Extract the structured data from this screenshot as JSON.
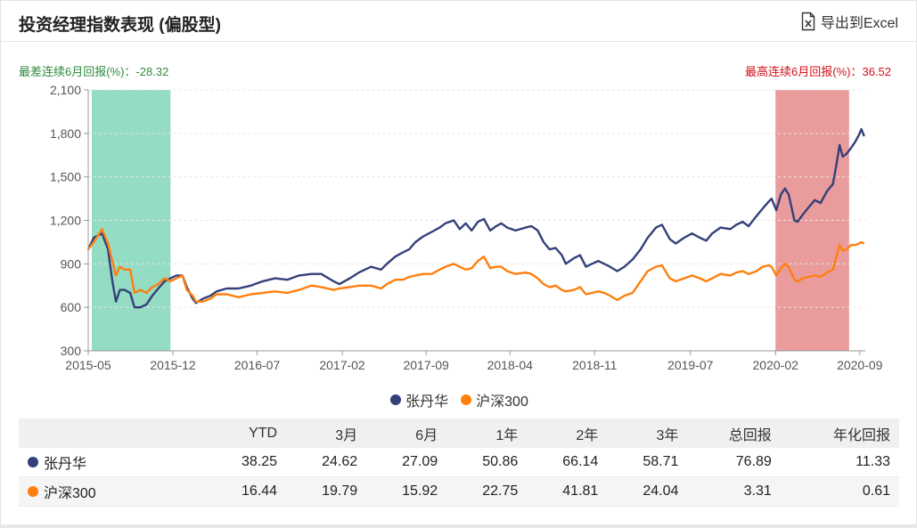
{
  "header": {
    "title": "投资经理指数表现 (偏股型)",
    "export_label": "导出到Excel"
  },
  "summary": {
    "worst_label": "最差连续6月回报(%)：-28.32",
    "best_label": "最高连续6月回报(%)：36.52"
  },
  "colors": {
    "manager": "#34407a",
    "index": "#ff7f0e",
    "worst_band": "#94dcc3",
    "best_band": "#ea9c9c"
  },
  "chart_data": {
    "type": "line",
    "x_range": [
      "2015-05-01",
      "2020-09-15"
    ],
    "x_ticks": [
      "2015-05",
      "2015-12",
      "2016-07",
      "2017-02",
      "2017-09",
      "2018-04",
      "2018-11",
      "2019-07",
      "2020-02",
      "2020-09"
    ],
    "ylim": [
      300,
      2100
    ],
    "y_ticks": [
      "300",
      "600",
      "900",
      "1,200",
      "1,500",
      "1,800",
      "2,100"
    ],
    "grid": true,
    "legend_position": "bottom",
    "bands": [
      {
        "name": "worst",
        "start": "2015-05-10",
        "end": "2015-11-25"
      },
      {
        "name": "best",
        "start": "2020-02-01",
        "end": "2020-08-05"
      }
    ],
    "series": [
      {
        "name": "张丹华",
        "points": [
          [
            "2015-05-01",
            1000
          ],
          [
            "2015-05-15",
            1080
          ],
          [
            "2015-06-05",
            1110
          ],
          [
            "2015-06-20",
            1000
          ],
          [
            "2015-07-01",
            780
          ],
          [
            "2015-07-10",
            640
          ],
          [
            "2015-07-20",
            720
          ],
          [
            "2015-08-01",
            720
          ],
          [
            "2015-08-15",
            700
          ],
          [
            "2015-08-26",
            600
          ],
          [
            "2015-09-10",
            600
          ],
          [
            "2015-09-25",
            620
          ],
          [
            "2015-10-10",
            680
          ],
          [
            "2015-10-25",
            730
          ],
          [
            "2015-11-10",
            780
          ],
          [
            "2015-11-25",
            800
          ],
          [
            "2015-12-10",
            820
          ],
          [
            "2015-12-25",
            820
          ],
          [
            "2016-01-05",
            740
          ],
          [
            "2016-01-20",
            660
          ],
          [
            "2016-01-28",
            630
          ],
          [
            "2016-02-15",
            660
          ],
          [
            "2016-03-05",
            680
          ],
          [
            "2016-03-20",
            710
          ],
          [
            "2016-04-15",
            730
          ],
          [
            "2016-05-15",
            730
          ],
          [
            "2016-06-15",
            750
          ],
          [
            "2016-07-15",
            780
          ],
          [
            "2016-08-15",
            800
          ],
          [
            "2016-09-15",
            790
          ],
          [
            "2016-10-15",
            820
          ],
          [
            "2016-11-15",
            830
          ],
          [
            "2016-12-10",
            830
          ],
          [
            "2017-01-10",
            780
          ],
          [
            "2017-01-25",
            760
          ],
          [
            "2017-02-20",
            800
          ],
          [
            "2017-03-15",
            840
          ],
          [
            "2017-04-15",
            880
          ],
          [
            "2017-05-10",
            860
          ],
          [
            "2017-05-25",
            900
          ],
          [
            "2017-06-15",
            950
          ],
          [
            "2017-07-05",
            980
          ],
          [
            "2017-07-20",
            1000
          ],
          [
            "2017-08-05",
            1050
          ],
          [
            "2017-08-25",
            1090
          ],
          [
            "2017-09-15",
            1120
          ],
          [
            "2017-10-05",
            1150
          ],
          [
            "2017-10-20",
            1180
          ],
          [
            "2017-11-10",
            1200
          ],
          [
            "2017-11-25",
            1140
          ],
          [
            "2017-12-10",
            1180
          ],
          [
            "2017-12-25",
            1130
          ],
          [
            "2018-01-10",
            1190
          ],
          [
            "2018-01-25",
            1210
          ],
          [
            "2018-02-10",
            1130
          ],
          [
            "2018-02-25",
            1160
          ],
          [
            "2018-03-10",
            1180
          ],
          [
            "2018-03-25",
            1150
          ],
          [
            "2018-04-15",
            1130
          ],
          [
            "2018-05-10",
            1150
          ],
          [
            "2018-05-25",
            1160
          ],
          [
            "2018-06-10",
            1130
          ],
          [
            "2018-06-25",
            1050
          ],
          [
            "2018-07-10",
            1000
          ],
          [
            "2018-07-25",
            1010
          ],
          [
            "2018-08-10",
            960
          ],
          [
            "2018-08-20",
            900
          ],
          [
            "2018-09-10",
            940
          ],
          [
            "2018-09-25",
            960
          ],
          [
            "2018-10-10",
            880
          ],
          [
            "2018-10-25",
            900
          ],
          [
            "2018-11-10",
            920
          ],
          [
            "2018-11-25",
            900
          ],
          [
            "2018-12-10",
            880
          ],
          [
            "2018-12-28",
            850
          ],
          [
            "2019-01-15",
            880
          ],
          [
            "2019-02-05",
            930
          ],
          [
            "2019-02-25",
            1000
          ],
          [
            "2019-03-15",
            1080
          ],
          [
            "2019-04-05",
            1150
          ],
          [
            "2019-04-20",
            1170
          ],
          [
            "2019-05-10",
            1070
          ],
          [
            "2019-05-25",
            1040
          ],
          [
            "2019-06-15",
            1080
          ],
          [
            "2019-07-05",
            1110
          ],
          [
            "2019-07-25",
            1080
          ],
          [
            "2019-08-10",
            1060
          ],
          [
            "2019-08-25",
            1110
          ],
          [
            "2019-09-15",
            1150
          ],
          [
            "2019-10-10",
            1140
          ],
          [
            "2019-10-25",
            1170
          ],
          [
            "2019-11-10",
            1190
          ],
          [
            "2019-11-25",
            1160
          ],
          [
            "2019-12-15",
            1230
          ],
          [
            "2019-12-30",
            1280
          ],
          [
            "2020-01-15",
            1330
          ],
          [
            "2020-01-22",
            1350
          ],
          [
            "2020-02-03",
            1270
          ],
          [
            "2020-02-15",
            1380
          ],
          [
            "2020-02-25",
            1420
          ],
          [
            "2020-03-05",
            1380
          ],
          [
            "2020-03-20",
            1200
          ],
          [
            "2020-03-28",
            1190
          ],
          [
            "2020-04-10",
            1240
          ],
          [
            "2020-04-25",
            1290
          ],
          [
            "2020-05-10",
            1340
          ],
          [
            "2020-05-25",
            1320
          ],
          [
            "2020-06-10",
            1400
          ],
          [
            "2020-06-25",
            1450
          ],
          [
            "2020-07-05",
            1600
          ],
          [
            "2020-07-12",
            1720
          ],
          [
            "2020-07-20",
            1640
          ],
          [
            "2020-07-30",
            1660
          ],
          [
            "2020-08-10",
            1700
          ],
          [
            "2020-08-20",
            1740
          ],
          [
            "2020-08-30",
            1790
          ],
          [
            "2020-09-05",
            1830
          ],
          [
            "2020-09-12",
            1780
          ]
        ]
      },
      {
        "name": "沪深300",
        "points": [
          [
            "2015-05-01",
            1000
          ],
          [
            "2015-05-15",
            1050
          ],
          [
            "2015-06-05",
            1140
          ],
          [
            "2015-06-20",
            1040
          ],
          [
            "2015-07-01",
            920
          ],
          [
            "2015-07-10",
            820
          ],
          [
            "2015-07-20",
            880
          ],
          [
            "2015-08-01",
            860
          ],
          [
            "2015-08-15",
            860
          ],
          [
            "2015-08-26",
            700
          ],
          [
            "2015-09-10",
            720
          ],
          [
            "2015-09-25",
            700
          ],
          [
            "2015-10-10",
            740
          ],
          [
            "2015-10-25",
            760
          ],
          [
            "2015-11-10",
            800
          ],
          [
            "2015-11-25",
            780
          ],
          [
            "2015-12-10",
            800
          ],
          [
            "2015-12-25",
            820
          ],
          [
            "2016-01-05",
            720
          ],
          [
            "2016-01-20",
            680
          ],
          [
            "2016-01-28",
            640
          ],
          [
            "2016-02-15",
            640
          ],
          [
            "2016-03-05",
            660
          ],
          [
            "2016-03-20",
            690
          ],
          [
            "2016-04-15",
            690
          ],
          [
            "2016-05-15",
            670
          ],
          [
            "2016-06-15",
            690
          ],
          [
            "2016-07-15",
            700
          ],
          [
            "2016-08-15",
            710
          ],
          [
            "2016-09-15",
            700
          ],
          [
            "2016-10-15",
            720
          ],
          [
            "2016-11-15",
            750
          ],
          [
            "2016-12-10",
            740
          ],
          [
            "2017-01-10",
            720
          ],
          [
            "2017-01-25",
            730
          ],
          [
            "2017-02-20",
            740
          ],
          [
            "2017-03-15",
            750
          ],
          [
            "2017-04-15",
            750
          ],
          [
            "2017-05-10",
            730
          ],
          [
            "2017-05-25",
            760
          ],
          [
            "2017-06-15",
            790
          ],
          [
            "2017-07-05",
            790
          ],
          [
            "2017-07-20",
            810
          ],
          [
            "2017-08-05",
            820
          ],
          [
            "2017-08-25",
            830
          ],
          [
            "2017-09-15",
            830
          ],
          [
            "2017-10-05",
            860
          ],
          [
            "2017-10-20",
            880
          ],
          [
            "2017-11-10",
            900
          ],
          [
            "2017-11-25",
            880
          ],
          [
            "2017-12-10",
            860
          ],
          [
            "2017-12-25",
            870
          ],
          [
            "2018-01-10",
            920
          ],
          [
            "2018-01-25",
            950
          ],
          [
            "2018-02-10",
            870
          ],
          [
            "2018-02-25",
            880
          ],
          [
            "2018-03-10",
            880
          ],
          [
            "2018-03-25",
            850
          ],
          [
            "2018-04-15",
            830
          ],
          [
            "2018-05-10",
            840
          ],
          [
            "2018-05-25",
            830
          ],
          [
            "2018-06-10",
            800
          ],
          [
            "2018-06-25",
            760
          ],
          [
            "2018-07-10",
            740
          ],
          [
            "2018-07-25",
            750
          ],
          [
            "2018-08-10",
            720
          ],
          [
            "2018-08-20",
            710
          ],
          [
            "2018-09-10",
            720
          ],
          [
            "2018-09-25",
            740
          ],
          [
            "2018-10-10",
            690
          ],
          [
            "2018-10-25",
            700
          ],
          [
            "2018-11-10",
            710
          ],
          [
            "2018-11-25",
            700
          ],
          [
            "2018-12-10",
            680
          ],
          [
            "2018-12-28",
            650
          ],
          [
            "2019-01-15",
            680
          ],
          [
            "2019-02-05",
            700
          ],
          [
            "2019-02-25",
            780
          ],
          [
            "2019-03-15",
            850
          ],
          [
            "2019-04-05",
            880
          ],
          [
            "2019-04-20",
            890
          ],
          [
            "2019-05-10",
            800
          ],
          [
            "2019-05-25",
            780
          ],
          [
            "2019-06-15",
            800
          ],
          [
            "2019-07-05",
            820
          ],
          [
            "2019-07-25",
            800
          ],
          [
            "2019-08-10",
            780
          ],
          [
            "2019-08-25",
            800
          ],
          [
            "2019-09-15",
            830
          ],
          [
            "2019-10-10",
            820
          ],
          [
            "2019-10-25",
            840
          ],
          [
            "2019-11-10",
            850
          ],
          [
            "2019-11-25",
            830
          ],
          [
            "2019-12-15",
            850
          ],
          [
            "2019-12-30",
            880
          ],
          [
            "2020-01-15",
            890
          ],
          [
            "2020-01-22",
            880
          ],
          [
            "2020-02-03",
            820
          ],
          [
            "2020-02-15",
            870
          ],
          [
            "2020-02-25",
            900
          ],
          [
            "2020-03-05",
            880
          ],
          [
            "2020-03-20",
            790
          ],
          [
            "2020-03-28",
            780
          ],
          [
            "2020-04-10",
            800
          ],
          [
            "2020-04-25",
            810
          ],
          [
            "2020-05-10",
            820
          ],
          [
            "2020-05-25",
            810
          ],
          [
            "2020-06-10",
            840
          ],
          [
            "2020-06-25",
            860
          ],
          [
            "2020-07-05",
            960
          ],
          [
            "2020-07-12",
            1030
          ],
          [
            "2020-07-20",
            990
          ],
          [
            "2020-07-30",
            1000
          ],
          [
            "2020-08-10",
            1030
          ],
          [
            "2020-08-20",
            1030
          ],
          [
            "2020-08-30",
            1040
          ],
          [
            "2020-09-05",
            1050
          ],
          [
            "2020-09-12",
            1040
          ]
        ]
      }
    ]
  },
  "legend": {
    "items": [
      "张丹华",
      "沪深300"
    ]
  },
  "table": {
    "headers": [
      "",
      "YTD",
      "3月",
      "6月",
      "1年",
      "2年",
      "3年",
      "总回报",
      "年化回报"
    ],
    "rows": [
      {
        "name": "张丹华",
        "values": [
          "38.25",
          "24.62",
          "27.09",
          "50.86",
          "66.14",
          "58.71",
          "76.89",
          "11.33"
        ]
      },
      {
        "name": "沪深300",
        "values": [
          "16.44",
          "19.79",
          "15.92",
          "22.75",
          "41.81",
          "24.04",
          "3.31",
          "0.61"
        ]
      }
    ]
  }
}
